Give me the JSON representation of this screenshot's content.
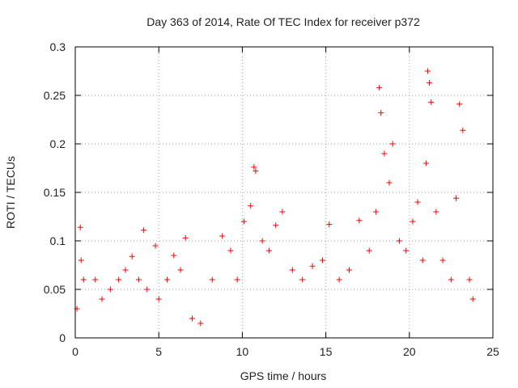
{
  "chart_data": {
    "type": "scatter",
    "title": "Day 363 of 2014, Rate Of TEC Index for receiver p372",
    "xlabel": "GPS time / hours",
    "ylabel": "ROTI / TECUs",
    "xlim": [
      0,
      25
    ],
    "ylim": [
      0,
      0.3
    ],
    "x_ticks": [
      0,
      5,
      10,
      15,
      20,
      25
    ],
    "y_ticks": [
      0,
      0.05,
      0.1,
      0.15,
      0.2,
      0.25,
      0.3
    ],
    "x_tick_labels": [
      "0",
      "5",
      "10",
      "15",
      "20",
      "25"
    ],
    "y_tick_labels": [
      "0",
      "0.05",
      "0.1",
      "0.15",
      "0.2",
      "0.25",
      "0.3"
    ],
    "grid": true,
    "marker": "plus",
    "color": "#ff0000",
    "series": [
      {
        "x": [
          0.1,
          0.3,
          0.35,
          0.5,
          1.2,
          1.6,
          2.1,
          2.6,
          3.0,
          3.4,
          3.8,
          4.1,
          4.3,
          4.8,
          5.0,
          5.5,
          5.9,
          6.3,
          6.6,
          7.0,
          7.5,
          8.2,
          8.8,
          9.3,
          9.7,
          10.1,
          10.5,
          10.7,
          10.8,
          11.2,
          11.6,
          12.0,
          12.4,
          13.0,
          13.6,
          14.2,
          14.8,
          15.2,
          15.8,
          16.4,
          17.0,
          17.6,
          18.0,
          18.2,
          18.3,
          18.5,
          18.8,
          19.0,
          19.4,
          19.8,
          20.2,
          20.5,
          20.8,
          21.0,
          21.1,
          21.2,
          21.3,
          21.6,
          22.0,
          22.5,
          22.8,
          23.0,
          23.2,
          23.6,
          23.8
        ],
        "y": [
          0.03,
          0.114,
          0.08,
          0.06,
          0.06,
          0.04,
          0.05,
          0.06,
          0.07,
          0.084,
          0.06,
          0.111,
          0.05,
          0.095,
          0.04,
          0.06,
          0.085,
          0.07,
          0.103,
          0.02,
          0.015,
          0.06,
          0.105,
          0.09,
          0.06,
          0.12,
          0.136,
          0.176,
          0.172,
          0.1,
          0.09,
          0.116,
          0.13,
          0.07,
          0.06,
          0.074,
          0.08,
          0.117,
          0.06,
          0.07,
          0.121,
          0.09,
          0.13,
          0.258,
          0.232,
          0.19,
          0.16,
          0.2,
          0.1,
          0.09,
          0.12,
          0.14,
          0.08,
          0.18,
          0.275,
          0.263,
          0.243,
          0.13,
          0.08,
          0.06,
          0.144,
          0.241,
          0.214,
          0.06,
          0.04
        ]
      }
    ]
  }
}
